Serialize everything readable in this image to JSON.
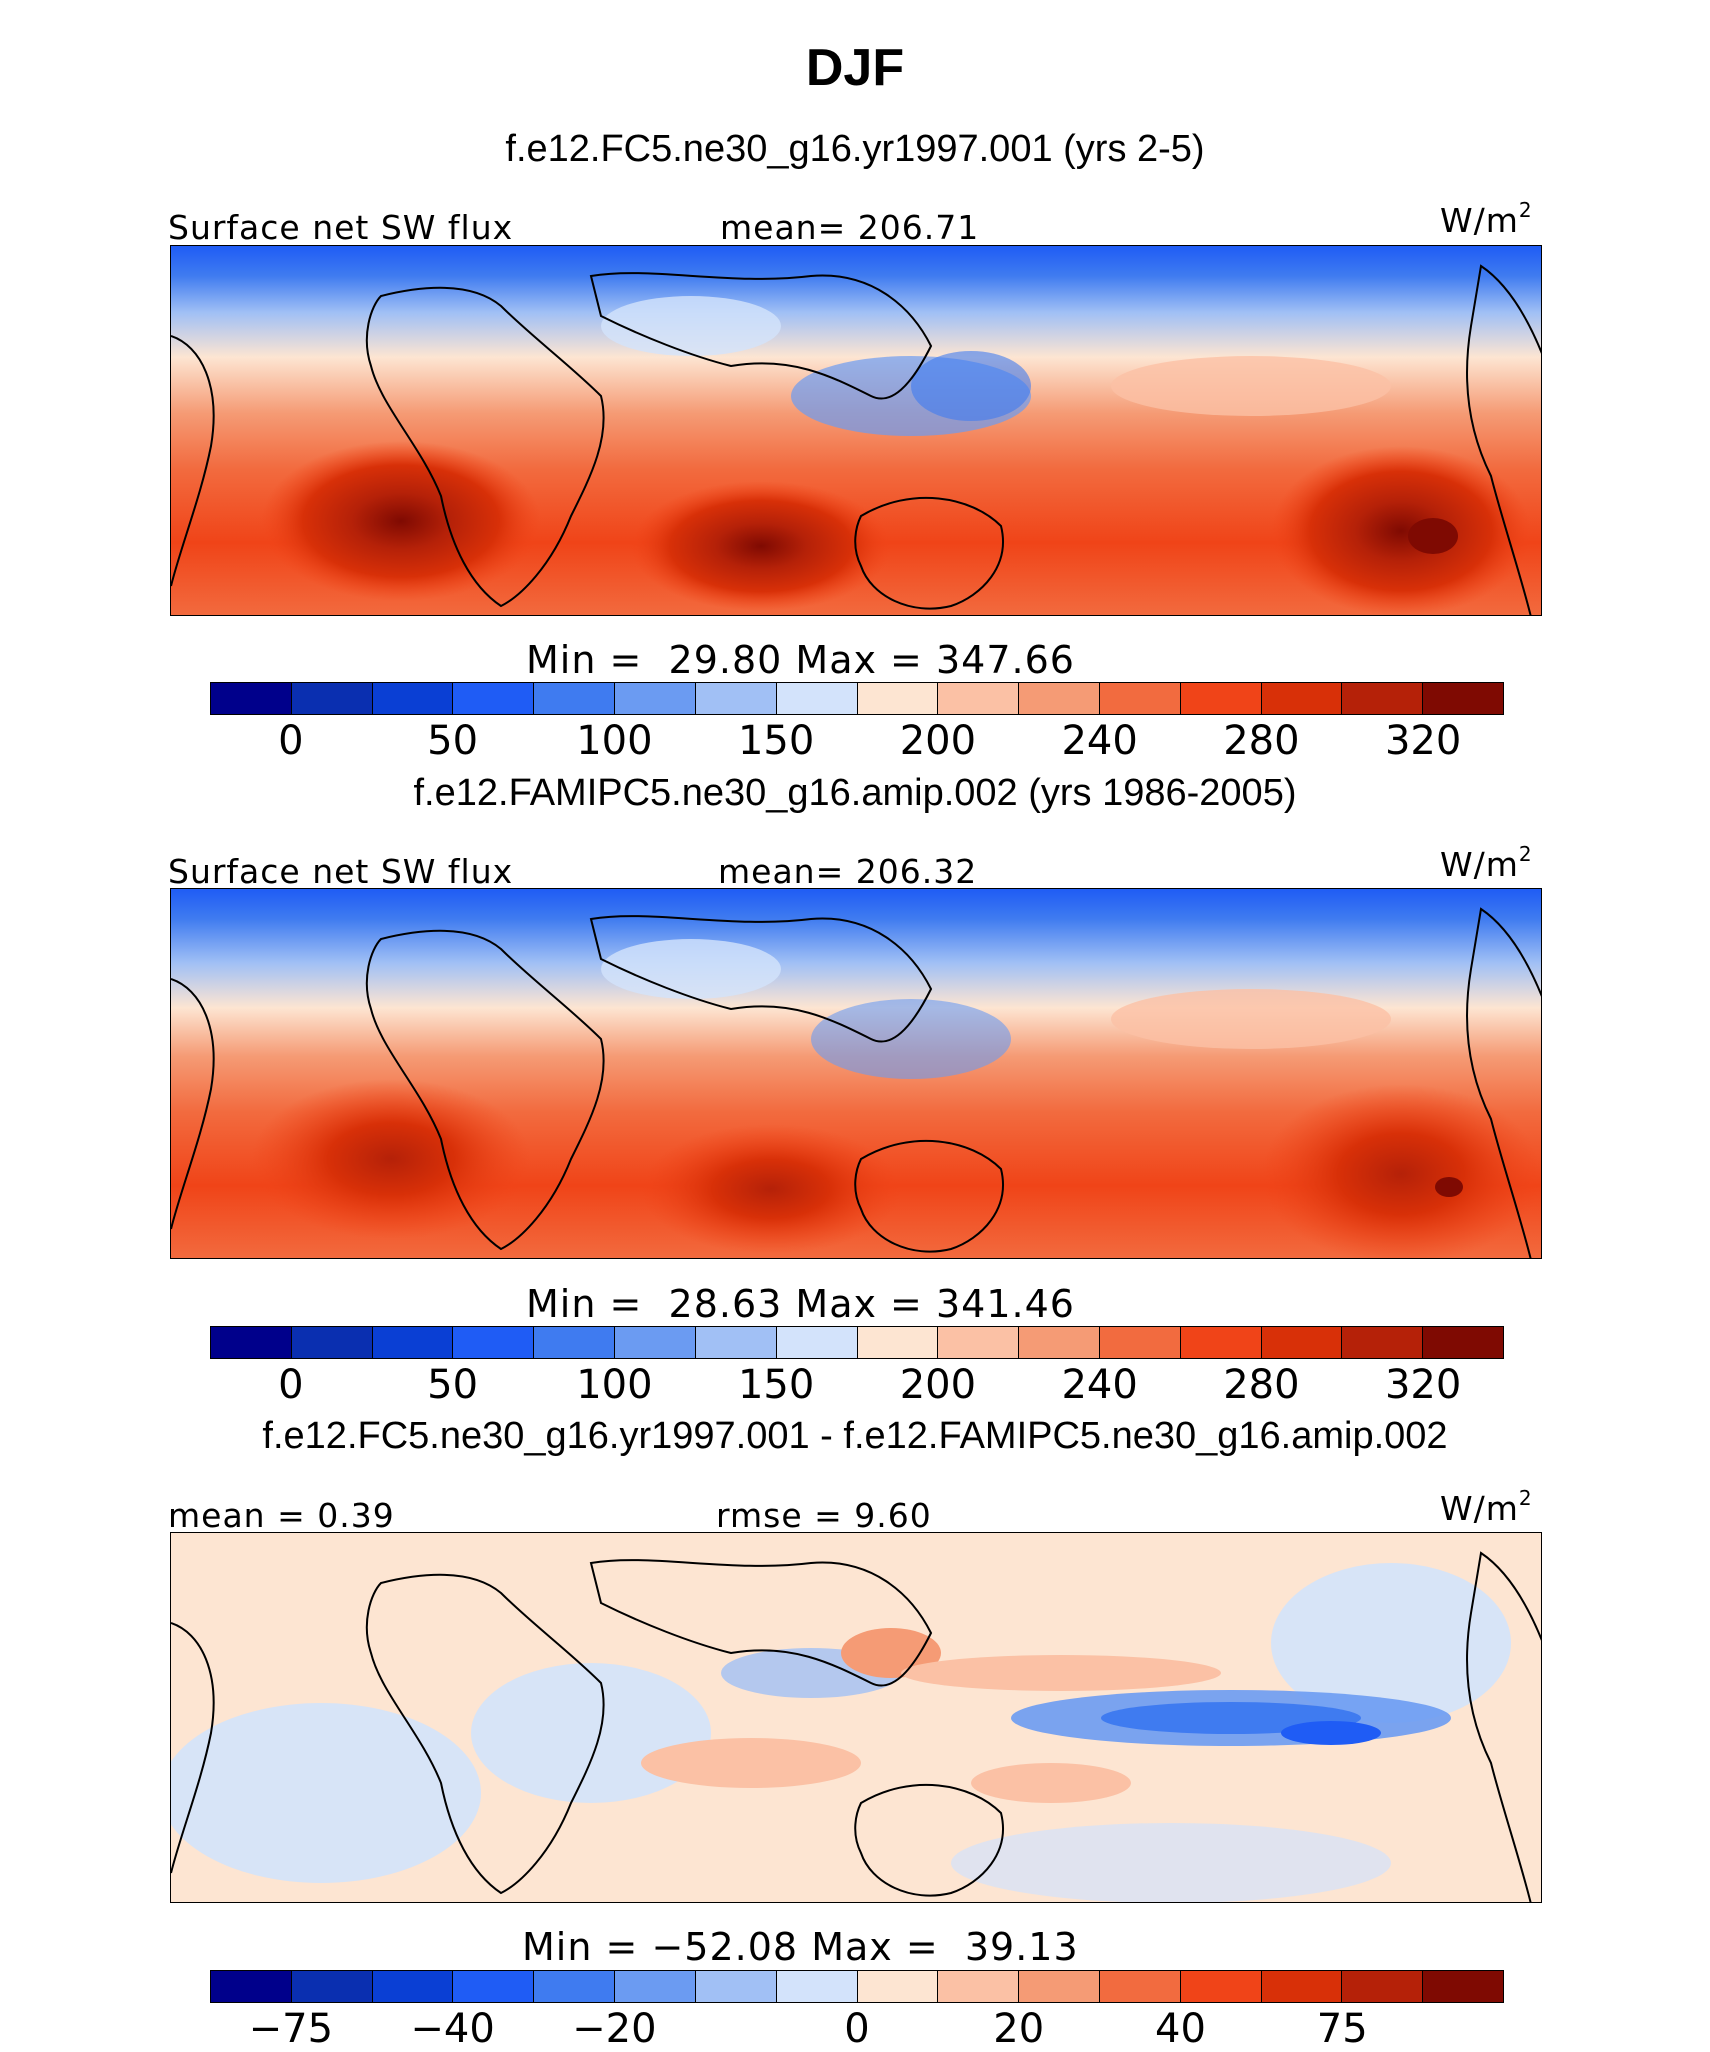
{
  "figure": {
    "title": "DJF"
  },
  "panels": [
    {
      "case_title": "f.e12.FC5.ne30_g16.yr1997.001 (yrs 2-5)",
      "left_label": "Surface net SW flux",
      "center_label": "mean= 206.71",
      "units": "W/m",
      "units_sup": "2",
      "min_label": "Min =",
      "min_value": "29.80",
      "max_label": "Max =",
      "max_value": "347.66",
      "colorbar_ticks": [
        "0",
        "50",
        "100",
        "150",
        "200",
        "240",
        "280",
        "320"
      ],
      "palette": "absolute"
    },
    {
      "case_title": "f.e12.FAMIPC5.ne30_g16.amip.002 (yrs 1986-2005)",
      "left_label": "Surface net SW flux",
      "center_label": "mean= 206.32",
      "units": "W/m",
      "units_sup": "2",
      "min_label": "Min =",
      "min_value": "28.63",
      "max_label": "Max =",
      "max_value": "341.46",
      "colorbar_ticks": [
        "0",
        "50",
        "100",
        "150",
        "200",
        "240",
        "280",
        "320"
      ],
      "palette": "absolute"
    },
    {
      "case_title": "f.e12.FC5.ne30_g16.yr1997.001 - f.e12.FAMIPC5.ne30_g16.amip.002",
      "left_label": "mean =   0.39",
      "center_label": "rmse =   9.60",
      "units": "W/m",
      "units_sup": "2",
      "min_label": "Min =",
      "min_value": "−52.08",
      "max_label": "Max =",
      "max_value": "39.13",
      "colorbar_ticks": [
        "−75",
        "−40",
        "−20",
        "0",
        "20",
        "40",
        "75"
      ],
      "palette": "difference"
    }
  ],
  "colors": {
    "scale": [
      "#00008b",
      "#0a2fb0",
      "#0a3fd4",
      "#1f5cf5",
      "#3f7bf0",
      "#6b9bf2",
      "#a1c0f5",
      "#d3e3fb",
      "#fde5d2",
      "#fbc1a5",
      "#f59b75",
      "#f26b3f",
      "#f04418",
      "#d83008",
      "#b52108",
      "#7f0a02"
    ]
  },
  "icons": {
    "coastlines": "world-coastline-outline"
  }
}
